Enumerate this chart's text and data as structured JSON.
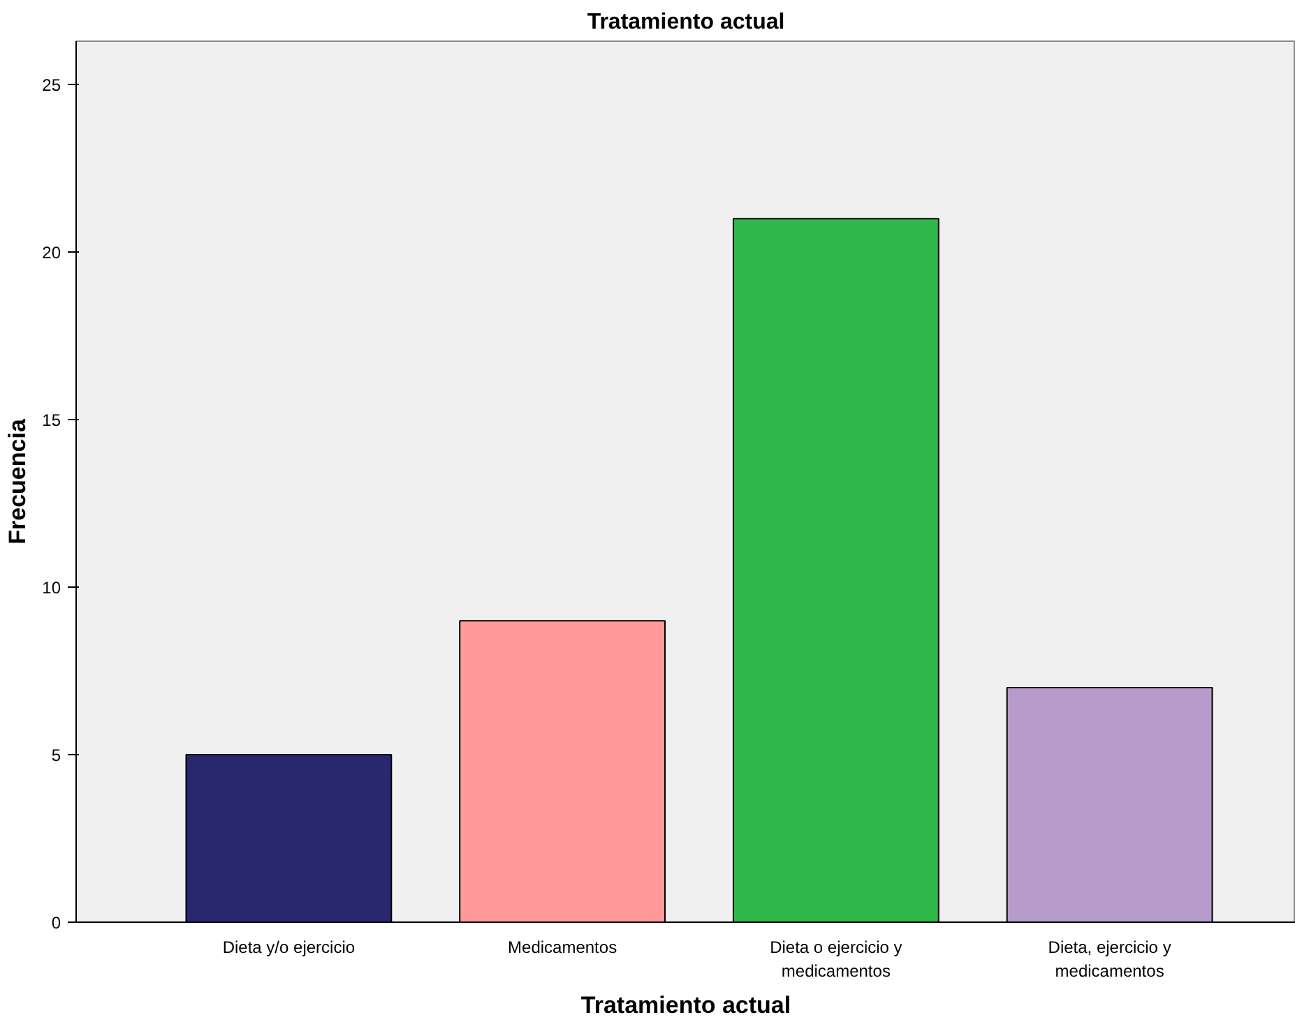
{
  "chart_data": {
    "type": "bar",
    "title": "Tratamiento actual",
    "xlabel": "Tratamiento actual",
    "ylabel": "Frecuencia",
    "categories": [
      "Dieta y/o ejercicio",
      "Medicamentos",
      "Dieta o ejercicio y\nmedicamentos",
      "Dieta, ejercicio y\nmedicamentos"
    ],
    "values": [
      5,
      9,
      21,
      7
    ],
    "colors": [
      "#29286f",
      "#fe9a99",
      "#2eb84a",
      "#b79bca"
    ],
    "ylim": [
      0,
      26.3
    ],
    "yticks": [
      0,
      5,
      10,
      15,
      20,
      25
    ],
    "grid": false
  }
}
